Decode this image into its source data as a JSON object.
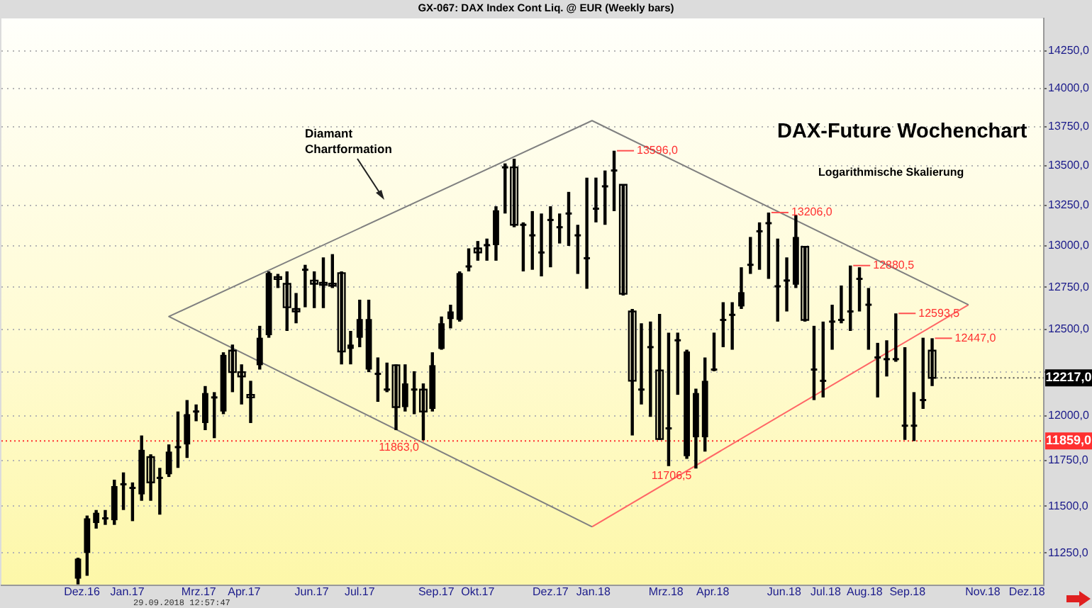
{
  "chart_data": {
    "type": "candlestick",
    "title": "GX-067:  DAX Index Cont Liq. @ EUR  (Weekly bars)",
    "subtitle": "DAX-Future Wochenchart",
    "color": "#000000",
    "x": [
      "2016-12-05",
      "2016-12-12",
      "2016-12-19",
      "2016-12-26",
      "2017-01-02",
      "2017-01-09",
      "2017-01-16",
      "2017-01-23",
      "2017-01-30",
      "2017-02-06",
      "2017-02-13",
      "2017-02-20",
      "2017-02-27",
      "2017-03-06",
      "2017-03-13",
      "2017-03-20",
      "2017-03-27",
      "2017-04-03",
      "2017-04-10",
      "2017-04-17",
      "2017-04-24",
      "2017-05-01",
      "2017-05-08",
      "2017-05-15",
      "2017-05-22",
      "2017-05-29",
      "2017-06-05",
      "2017-06-12",
      "2017-06-19",
      "2017-06-26",
      "2017-07-03",
      "2017-07-10",
      "2017-07-17",
      "2017-07-24",
      "2017-07-31",
      "2017-08-07",
      "2017-08-14",
      "2017-08-21",
      "2017-08-28",
      "2017-09-04",
      "2017-09-11",
      "2017-09-18",
      "2017-09-25",
      "2017-10-02",
      "2017-10-09",
      "2017-10-16",
      "2017-10-23",
      "2017-10-30",
      "2017-11-06",
      "2017-11-13",
      "2017-11-20",
      "2017-11-27",
      "2017-12-04",
      "2017-12-11",
      "2017-12-18",
      "2017-12-25",
      "2018-01-01",
      "2018-01-08",
      "2018-01-15",
      "2018-01-22",
      "2018-01-29",
      "2018-02-05",
      "2018-02-12",
      "2018-02-19",
      "2018-02-26",
      "2018-03-05",
      "2018-03-12",
      "2018-03-19",
      "2018-03-26",
      "2018-04-02",
      "2018-04-09",
      "2018-04-16",
      "2018-04-23",
      "2018-04-30",
      "2018-05-07",
      "2018-05-14",
      "2018-05-21",
      "2018-05-28",
      "2018-06-04",
      "2018-06-11",
      "2018-06-18",
      "2018-06-25",
      "2018-07-02",
      "2018-07-09",
      "2018-07-16",
      "2018-07-23",
      "2018-07-30",
      "2018-08-06",
      "2018-08-13",
      "2018-08-20",
      "2018-08-27",
      "2018-09-03",
      "2018-09-10",
      "2018-09-17",
      "2018-09-24"
    ],
    "ohlc": [
      [
        11115,
        11225,
        11085,
        11220
      ],
      [
        11250,
        11450,
        11130,
        11435
      ],
      [
        11410,
        11480,
        11380,
        11465
      ],
      [
        11435,
        11480,
        11400,
        11435
      ],
      [
        11425,
        11645,
        11400,
        11610
      ],
      [
        11615,
        11685,
        11480,
        11620
      ],
      [
        11595,
        11630,
        11420,
        11600
      ],
      [
        11565,
        11890,
        11530,
        11810
      ],
      [
        11770,
        11785,
        11530,
        11630
      ],
      [
        11655,
        11710,
        11455,
        11655
      ],
      [
        11675,
        11840,
        11660,
        11800
      ],
      [
        11825,
        12025,
        11710,
        11825
      ],
      [
        11840,
        12090,
        11765,
        12010
      ],
      [
        12025,
        12065,
        11970,
        12025
      ],
      [
        11960,
        12170,
        11920,
        12130
      ],
      [
        12105,
        12135,
        11875,
        12105
      ],
      [
        12025,
        12365,
        12010,
        12350
      ],
      [
        12375,
        12410,
        12135,
        12250
      ],
      [
        12250,
        12295,
        12065,
        12225
      ],
      [
        12120,
        12200,
        11960,
        12105
      ],
      [
        12290,
        12520,
        12265,
        12450
      ],
      [
        12465,
        12845,
        12450,
        12835
      ],
      [
        12805,
        12830,
        12745,
        12800
      ],
      [
        12770,
        12845,
        12490,
        12630
      ],
      [
        12620,
        12715,
        12535,
        12605
      ],
      [
        12855,
        12885,
        12630,
        12855
      ],
      [
        12790,
        12845,
        12625,
        12770
      ],
      [
        12770,
        12930,
        12625,
        12765
      ],
      [
        12765,
        12950,
        12745,
        12760
      ],
      [
        12835,
        12845,
        12295,
        12370
      ],
      [
        12385,
        12490,
        12295,
        12410
      ],
      [
        12450,
        12675,
        12395,
        12560
      ],
      [
        12265,
        12675,
        12250,
        12560
      ],
      [
        12240,
        12335,
        12080,
        12240
      ],
      [
        12150,
        12305,
        12135,
        12150
      ],
      [
        12290,
        12295,
        11920,
        12050
      ],
      [
        12050,
        12295,
        12025,
        12185
      ],
      [
        12150,
        12255,
        12010,
        12150
      ],
      [
        12150,
        12185,
        11863,
        12025
      ],
      [
        12040,
        12365,
        12025,
        12290
      ],
      [
        12385,
        12575,
        12380,
        12535
      ],
      [
        12560,
        12645,
        12505,
        12605
      ],
      [
        12555,
        12845,
        12545,
        12835
      ],
      [
        12875,
        12985,
        12845,
        12875
      ],
      [
        12985,
        13030,
        12910,
        12960
      ],
      [
        13005,
        13045,
        12910,
        13005
      ],
      [
        13005,
        13245,
        12910,
        13220
      ],
      [
        13490,
        13515,
        13200,
        13490
      ],
      [
        13490,
        13545,
        13115,
        13130
      ],
      [
        13130,
        13145,
        12845,
        13130
      ],
      [
        13065,
        13215,
        12855,
        13065
      ],
      [
        12960,
        13200,
        12815,
        12960
      ],
      [
        13160,
        13245,
        12870,
        13160
      ],
      [
        13115,
        13200,
        13015,
        13115
      ],
      [
        13200,
        13335,
        13000,
        13200
      ],
      [
        13065,
        13130,
        12830,
        13065
      ],
      [
        12925,
        13425,
        12740,
        12925
      ],
      [
        13230,
        13425,
        13145,
        13230
      ],
      [
        13370,
        13470,
        13130,
        13370
      ],
      [
        13470,
        13596,
        13215,
        13470
      ],
      [
        13380,
        13380,
        12700,
        12710
      ],
      [
        12605,
        12620,
        11890,
        12200
      ],
      [
        12150,
        12535,
        12065,
        12150
      ],
      [
        12395,
        12545,
        11995,
        12395
      ],
      [
        12260,
        12590,
        11865,
        11870
      ],
      [
        11930,
        12480,
        11720,
        11930
      ],
      [
        12435,
        12480,
        12120,
        12435
      ],
      [
        11775,
        12380,
        11760,
        12370
      ],
      [
        11880,
        12155,
        11706.5,
        12130
      ],
      [
        11880,
        12335,
        11800,
        12200
      ],
      [
        12265,
        12480,
        12255,
        12265
      ],
      [
        12555,
        12660,
        12395,
        12555
      ],
      [
        12585,
        12660,
        12380,
        12585
      ],
      [
        12635,
        12870,
        12620,
        12720
      ],
      [
        12885,
        13055,
        12830,
        12885
      ],
      [
        13090,
        13145,
        12855,
        13090
      ],
      [
        13140,
        13206,
        12800,
        13140
      ],
      [
        12755,
        13045,
        12545,
        12755
      ],
      [
        12790,
        12930,
        12605,
        12790
      ],
      [
        12765,
        13190,
        12745,
        13055
      ],
      [
        12995,
        13000,
        12545,
        12555
      ],
      [
        12265,
        12520,
        12090,
        12265
      ],
      [
        12200,
        12545,
        12105,
        12200
      ],
      [
        12545,
        12645,
        12380,
        12545
      ],
      [
        12555,
        12760,
        12535,
        12555
      ],
      [
        12605,
        12880.5,
        12490,
        12605
      ],
      [
        12800,
        12870,
        12605,
        12800
      ],
      [
        12645,
        12745,
        12380,
        12645
      ],
      [
        12335,
        12420,
        12105,
        12335
      ],
      [
        12325,
        12435,
        12225,
        12325
      ],
      [
        12325,
        12593.5,
        12310,
        12325
      ],
      [
        11945,
        12395,
        11865,
        11945
      ],
      [
        11945,
        12135,
        11859,
        11945
      ],
      [
        12090,
        12450,
        12040,
        12090
      ],
      [
        12375,
        12447,
        12170,
        12217
      ]
    ],
    "series": [
      {
        "type": "line",
        "color": "#808080",
        "x": [
          "2018-01-05",
          "2017-02-13",
          "2018-01-05",
          "2018-10-22"
        ],
        "values": [
          11390,
          12575,
          13790,
          12645
        ]
      },
      {
        "type": "line",
        "color": "#ff6666",
        "x": [
          "2018-01-05",
          "2018-10-22"
        ],
        "values": [
          11390,
          12645
        ]
      }
    ],
    "xlim": [
      "2016-10-07",
      "2018-12-19"
    ],
    "xticks": [
      {
        "value": "2016-12-08",
        "label": "Dez.16"
      },
      {
        "value": "2017-01-12",
        "label": "Jan.17"
      },
      {
        "value": "2017-03-08",
        "label": "Mrz.17"
      },
      {
        "value": "2017-04-12",
        "label": "Apr.17"
      },
      {
        "value": "2017-06-03",
        "label": "Jun.17"
      },
      {
        "value": "2017-07-10",
        "label": "Jul.17"
      },
      {
        "value": "2017-09-07",
        "label": "Sep.17"
      },
      {
        "value": "2017-10-09",
        "label": "Okt.17"
      },
      {
        "value": "2017-12-04",
        "label": "Dez.17"
      },
      {
        "value": "2018-01-06",
        "label": "Jan.18"
      },
      {
        "value": "2018-03-03",
        "label": "Mrz.18"
      },
      {
        "value": "2018-04-08",
        "label": "Apr.18"
      },
      {
        "value": "2018-06-02",
        "label": "Jun.18"
      },
      {
        "value": "2018-07-04",
        "label": "Jul.18"
      },
      {
        "value": "2018-08-03",
        "label": "Aug.18"
      },
      {
        "value": "2018-09-05",
        "label": "Sep.18"
      },
      {
        "value": "2018-11-02",
        "label": "Nov.18"
      },
      {
        "value": "2018-12-06",
        "label": "Dez.18"
      }
    ],
    "ylim": [
      11080,
      14470
    ],
    "yticks": [
      {
        "value": 11250,
        "label": "11250,0"
      },
      {
        "value": 11500,
        "label": "11500,0"
      },
      {
        "value": 11750,
        "label": "11750,0"
      },
      {
        "value": 12000,
        "label": "12000,0"
      },
      {
        "value": 12250,
        "label": null
      },
      {
        "value": 12500,
        "label": "12500,0"
      },
      {
        "value": 12750,
        "label": "12750,0"
      },
      {
        "value": 13000,
        "label": "13000,0"
      },
      {
        "value": 13250,
        "label": "13250,0"
      },
      {
        "value": 13500,
        "label": "13500,0"
      },
      {
        "value": 13750,
        "label": "13750,0"
      },
      {
        "value": 14000,
        "label": "14000,0"
      },
      {
        "value": 14250,
        "label": "14250,0"
      }
    ],
    "log": true,
    "grid": "y",
    "ref_lines": [
      {
        "axis": "y",
        "value": 11859,
        "label": "11859,0",
        "color": "#ff3030",
        "line_style": "dotted"
      }
    ],
    "annotations": [
      "Diamant Chartformation",
      "Logarithmische Skalierung",
      "29.09.2018 12:57:47",
      {
        "text": "13596,0",
        "x": "2018-01-22",
        "y": 13596
      },
      {
        "text": "13206,0",
        "x": "2018-05-21",
        "y": 13206
      },
      {
        "text": "12880,5",
        "x": "2018-07-23",
        "y": 12880.5
      },
      {
        "text": "12593,5",
        "x": "2018-08-27",
        "y": 12593.5
      },
      {
        "text": "12447,0",
        "x": "2018-09-24",
        "y": 12447
      },
      {
        "text": "11706,5",
        "x": "2018-03-26",
        "y": 11706.5
      },
      {
        "text": "11863,0",
        "x": "2017-08-28",
        "y": 11863
      },
      {
        "text": "12217,0",
        "x": "2018-09-24",
        "y": 12217
      }
    ]
  }
}
